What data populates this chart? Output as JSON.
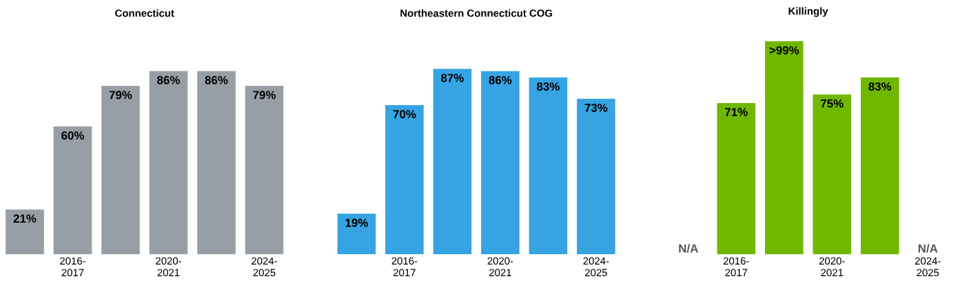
{
  "chart_data": [
    {
      "type": "bar",
      "title": "Connecticut",
      "categories": [
        null,
        "2016-2017",
        null,
        "2020-2021",
        null,
        "2024-2025"
      ],
      "values": [
        21,
        60,
        79,
        86,
        86,
        79
      ],
      "color": "#979ea6",
      "value_labels": [
        "21%",
        "60%",
        "79%",
        "86%",
        "86%",
        "79%"
      ]
    },
    {
      "type": "bar",
      "title": "Northeastern Connecticut COG",
      "categories": [
        null,
        "2016-2017",
        null,
        "2020-2021",
        null,
        "2024-2025"
      ],
      "values": [
        19,
        70,
        87,
        86,
        83,
        73
      ],
      "color": "#36a4e3",
      "value_labels": [
        "19%",
        "70%",
        "87%",
        "86%",
        "83%",
        "73%"
      ]
    },
    {
      "type": "bar",
      "title": "Killingly",
      "categories": [
        null,
        "2016-2017",
        null,
        "2020-2021",
        null,
        "2024-2025"
      ],
      "values": [
        null,
        71,
        100,
        75,
        83,
        null
      ],
      "color": "#70b800",
      "value_labels": [
        "N/A",
        "71%",
        ">99%",
        "75%",
        "83%",
        "N/A"
      ]
    }
  ]
}
